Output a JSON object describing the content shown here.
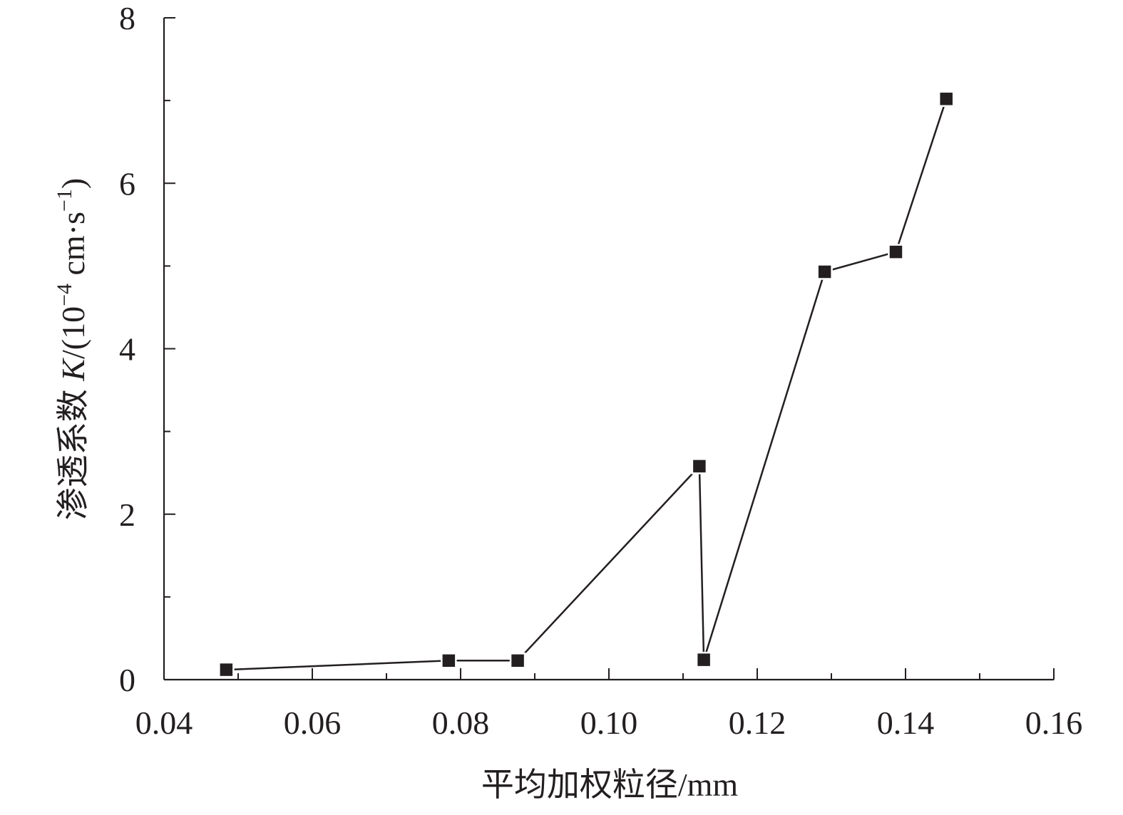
{
  "chart_data": {
    "type": "line",
    "xlabel": "平均加权粒径/mm",
    "ylabel_parts": {
      "prefix": "渗透系数 ",
      "var": "K",
      "unit_open": "/(10",
      "exponent": "−4",
      "unit_mid": " cm·s",
      "exponent2": "−1",
      "unit_close": ")"
    },
    "xlim": [
      0.04,
      0.16
    ],
    "ylim": [
      0,
      8
    ],
    "x_ticks": [
      "0.04",
      "0.06",
      "0.08",
      "0.10",
      "0.12",
      "0.14",
      "0.16"
    ],
    "y_ticks": [
      "0",
      "2",
      "4",
      "6",
      "8"
    ],
    "x_minor_step": 0.01,
    "y_minor_step": 1,
    "grid": false,
    "series": [
      {
        "marker": "square",
        "color": "#231f20",
        "x": [
          0.0484,
          0.0784,
          0.0877,
          0.1122,
          0.1128,
          0.1291,
          0.1387,
          0.1455
        ],
        "y": [
          0.12,
          0.23,
          0.23,
          2.58,
          0.24,
          4.93,
          5.17,
          7.02
        ]
      }
    ]
  }
}
